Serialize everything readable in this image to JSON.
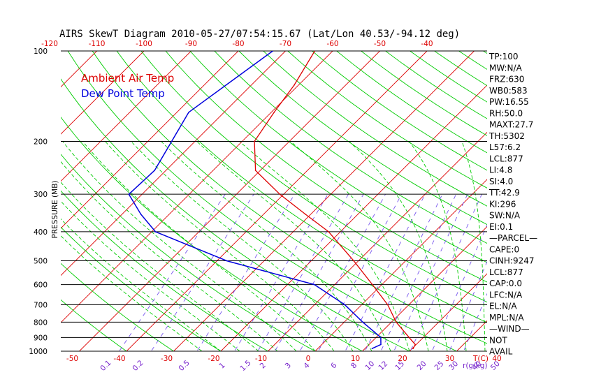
{
  "chart_data": {
    "type": "line",
    "title": "AIRS SkewT Diagram 2010-05-27/07:54:15.67 (Lat/Lon 40.53/-94.12 deg)",
    "ylabel": "PRESSURE (MB)",
    "xlabel": "T(C)",
    "mixing_ratio_label": "r(g/kg)",
    "pressure_ticks": [
      100,
      200,
      300,
      400,
      500,
      600,
      700,
      800,
      900,
      1000
    ],
    "top_temp_ticks": [
      -120,
      -110,
      -100,
      -90,
      -80,
      -70,
      -60,
      -50,
      -40
    ],
    "bottom_temp_ticks": [
      -50,
      -40,
      -30,
      -20,
      -10,
      0,
      10,
      20,
      30,
      40
    ],
    "mixing_ratio_ticks": [
      "0.1",
      "0.2",
      "0.5",
      "1",
      "1.5",
      "2",
      "3",
      "4",
      "6",
      "8",
      "10",
      "12",
      "15",
      "20",
      "25",
      "30",
      "40",
      "50"
    ],
    "series": [
      {
        "name": "Ambient Air Temp",
        "color": "#dd0000",
        "pressure": [
          100,
          130,
          160,
          200,
          250,
          300,
          350,
          400,
          500,
          600,
          700,
          800,
          900,
          950,
          980
        ],
        "temp": [
          -63.8,
          -60.9,
          -59.4,
          -57.4,
          -51.0,
          -40.8,
          -31.1,
          -22.5,
          -11.0,
          -2.0,
          5.5,
          11.0,
          17.0,
          19.8,
          20.2
        ]
      },
      {
        "name": "Dew Point Temp",
        "color": "#0000dd",
        "pressure": [
          100,
          160,
          250,
          300,
          350,
          400,
          500,
          600,
          700,
          800,
          900,
          950,
          980
        ],
        "dewpoint": [
          -72.7,
          -77.5,
          -72.4,
          -72.8,
          -66.0,
          -59.2,
          -37.9,
          -14.3,
          -3.6,
          3.9,
          11.0,
          12.5,
          11.5
        ]
      }
    ],
    "indices": [
      "TP:100",
      "MW:N/A",
      "FRZ:630",
      "WB0:583",
      "PW:16.55",
      "RH:50.0",
      "MAXT:27.7",
      "TH:5302",
      "L57:6.2",
      "LCL:877",
      "LI:4.8",
      "SI:4.0",
      "TT:42.9",
      "KI:296",
      "SW:N/A",
      "EI:0.1",
      "—PARCEL—",
      "CAPE:0",
      "CINH:9247",
      "LCL:877",
      "CAP:0.0",
      "LFC:N/A",
      "EL:N/A",
      "MPL:N/A",
      "—WIND—",
      "NOT",
      "AVAIL"
    ],
    "legend": [
      "Ambient Air Temp",
      "Dew Point Temp"
    ],
    "legend_position": "top-left",
    "colors": {
      "temperature": "#dd0000",
      "dewpoint": "#0000dd",
      "isotherm": "#dd0000",
      "dry_adiabat": "#00cc00",
      "moist_adiabat": "#00cc00",
      "mixing_ratio": "#7755ee",
      "axis_text": "#dd0000",
      "mixing_text": "#7722cc"
    }
  }
}
